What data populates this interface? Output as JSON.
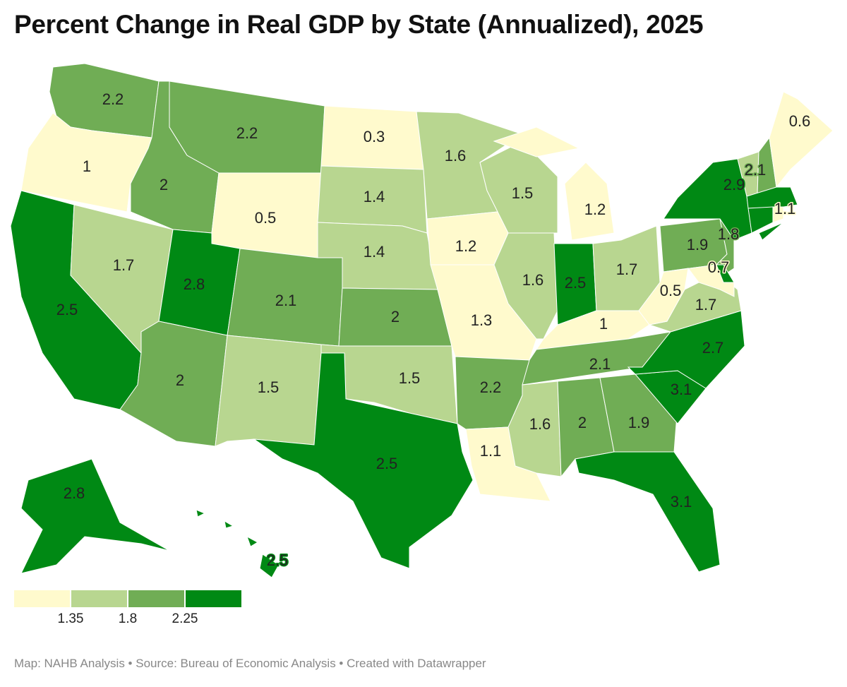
{
  "title": "Percent Change in Real GDP by State (Annualized), 2025",
  "footer": "Map: NAHB Analysis • Source: Bureau of Economic Analysis • Created with Datawrapper",
  "legend": {
    "colors": [
      "#fffacd",
      "#b8d690",
      "#70ad55",
      "#008914"
    ],
    "breaks": [
      "1.35",
      "1.8",
      "2.25"
    ]
  },
  "chart_data": {
    "type": "choropleth",
    "bins": [
      1.35,
      1.8,
      2.25
    ],
    "states": [
      {
        "abbr": "WA",
        "value": 2.2
      },
      {
        "abbr": "OR",
        "value": 1
      },
      {
        "abbr": "CA",
        "value": 2.5
      },
      {
        "abbr": "NV",
        "value": 1.7
      },
      {
        "abbr": "ID",
        "value": 2
      },
      {
        "abbr": "MT",
        "value": 2.2
      },
      {
        "abbr": "WY",
        "value": 0.5
      },
      {
        "abbr": "UT",
        "value": 2.8
      },
      {
        "abbr": "AZ",
        "value": 2
      },
      {
        "abbr": "CO",
        "value": 2.1
      },
      {
        "abbr": "NM",
        "value": 1.5
      },
      {
        "abbr": "ND",
        "value": 0.3
      },
      {
        "abbr": "SD",
        "value": 1.4
      },
      {
        "abbr": "NE",
        "value": 1.4
      },
      {
        "abbr": "KS",
        "value": 2
      },
      {
        "abbr": "OK",
        "value": 1.5
      },
      {
        "abbr": "TX",
        "value": 2.5
      },
      {
        "abbr": "MN",
        "value": 1.6
      },
      {
        "abbr": "IA",
        "value": 1.2
      },
      {
        "abbr": "MO",
        "value": 1.3
      },
      {
        "abbr": "AR",
        "value": 2.2
      },
      {
        "abbr": "LA",
        "value": 1.1
      },
      {
        "abbr": "WI",
        "value": 1.5
      },
      {
        "abbr": "IL",
        "value": 1.6
      },
      {
        "abbr": "MI",
        "value": 1.2
      },
      {
        "abbr": "IN",
        "value": 2.5
      },
      {
        "abbr": "OH",
        "value": 1.7
      },
      {
        "abbr": "KY",
        "value": 1
      },
      {
        "abbr": "TN",
        "value": 2.1
      },
      {
        "abbr": "MS",
        "value": 1.6
      },
      {
        "abbr": "AL",
        "value": 2
      },
      {
        "abbr": "GA",
        "value": 1.9
      },
      {
        "abbr": "FL",
        "value": 3.1
      },
      {
        "abbr": "SC",
        "value": 3.1
      },
      {
        "abbr": "NC",
        "value": 2.7
      },
      {
        "abbr": "VA",
        "value": 1.7
      },
      {
        "abbr": "WV",
        "value": 0.5
      },
      {
        "abbr": "PA",
        "value": 1.9
      },
      {
        "abbr": "NY",
        "value": 2.9
      },
      {
        "abbr": "NJ",
        "value": 1.8
      },
      {
        "abbr": "MD",
        "value": 0.7
      },
      {
        "abbr": "DE",
        "value": null,
        "bin": 3
      },
      {
        "abbr": "VT",
        "value": null,
        "bin": 1
      },
      {
        "abbr": "NH",
        "value": 2.1
      },
      {
        "abbr": "ME",
        "value": 0.6
      },
      {
        "abbr": "MA",
        "value": null,
        "bin": 3
      },
      {
        "abbr": "CT",
        "value": null,
        "bin": 3
      },
      {
        "abbr": "RI",
        "value": 1.1
      },
      {
        "abbr": "AK",
        "value": 2.8
      },
      {
        "abbr": "HI",
        "value": 2.5
      }
    ]
  }
}
